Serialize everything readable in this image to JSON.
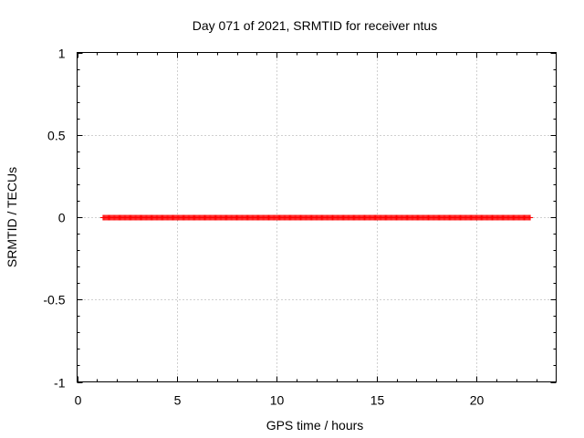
{
  "chart_data": {
    "type": "scatter",
    "title": "Day 071 of 2021, SRMTID for receiver ntus",
    "xlabel": "GPS time / hours",
    "ylabel": "SRMTID / TECUs",
    "xlim": [
      0,
      24
    ],
    "ylim": [
      -1,
      1
    ],
    "xticks": [
      0,
      5,
      10,
      15,
      20
    ],
    "yticks": [
      -1,
      -0.5,
      0,
      0.5,
      1
    ],
    "xtick_labels": [
      "0",
      "5",
      "10",
      "15",
      "20"
    ],
    "ytick_labels": [
      "-1",
      "-0.5",
      "0",
      "0.5",
      "1"
    ],
    "grid": true,
    "marker": "+",
    "series": [
      {
        "name": "SRMTID",
        "color": "#ff0000",
        "x_start": 1.3,
        "x_end": 22.7,
        "x_step": 0.05,
        "y_value": 0
      }
    ]
  }
}
